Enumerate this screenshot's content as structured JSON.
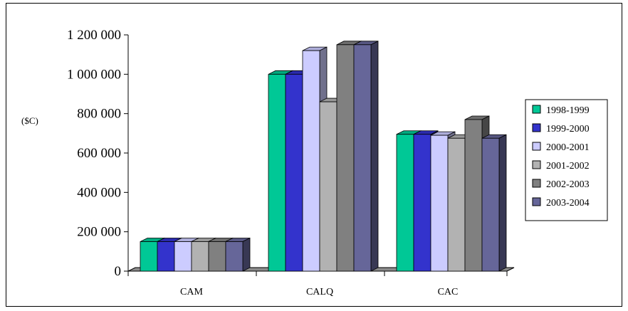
{
  "chart_data": {
    "type": "bar",
    "title": "",
    "xlabel": "",
    "ylabel": "($C)",
    "ylim": [
      0,
      1200000
    ],
    "yticks": [
      0,
      200000,
      400000,
      600000,
      800000,
      1000000,
      1200000
    ],
    "ytick_labels": [
      "0",
      "200 000",
      "400 000",
      "600 000",
      "800 000",
      "1 000 000",
      "1 200 000"
    ],
    "categories": [
      "CAM",
      "CALQ",
      "CAC"
    ],
    "series": [
      {
        "name": "1998-1999",
        "color": "#00C896",
        "values": [
          150000,
          1000000,
          695000
        ]
      },
      {
        "name": "1999-2000",
        "color": "#3333CC",
        "values": [
          150000,
          1000000,
          695000
        ]
      },
      {
        "name": "2000-2001",
        "color": "#CCCCFF",
        "values": [
          150000,
          1120000,
          690000
        ]
      },
      {
        "name": "2001-2002",
        "color": "#B2B2B2",
        "values": [
          150000,
          860000,
          675000
        ]
      },
      {
        "name": "2002-2003",
        "color": "#808080",
        "values": [
          150000,
          1150000,
          770000
        ]
      },
      {
        "name": "2003-2004",
        "color": "#666699",
        "values": [
          150000,
          1150000,
          675000
        ]
      }
    ],
    "grid": false,
    "legend_position": "right",
    "style": "3d-clustered-bar"
  }
}
